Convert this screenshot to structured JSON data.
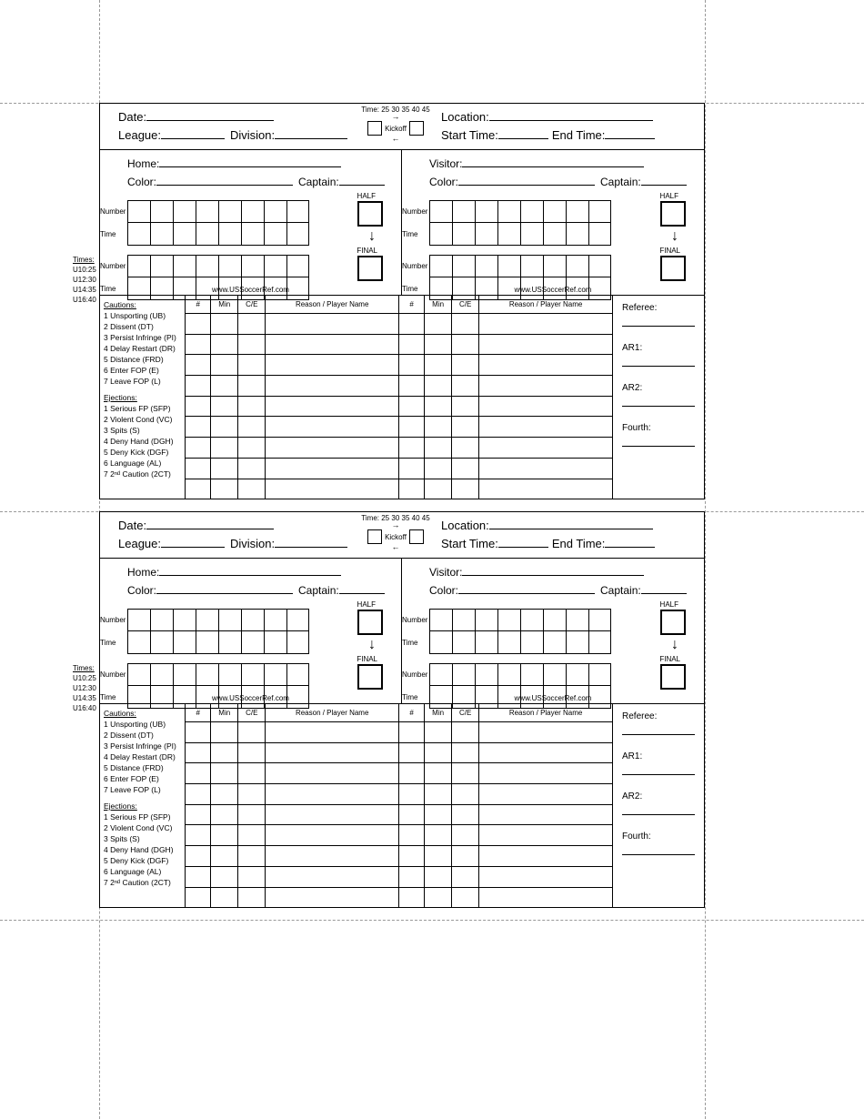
{
  "cuts": {
    "h": [
      113,
      562,
      1011
    ],
    "v": [
      109,
      775
    ]
  },
  "cards_top": [
    113,
    562
  ],
  "header": {
    "date": "Date:",
    "league": "League:",
    "division": "Division:",
    "location": "Location:",
    "start": "Start Time:",
    "end": "End Time:",
    "time_label": "Time:",
    "times": [
      "25",
      "30",
      "35",
      "40",
      "45"
    ],
    "kickoff": "Kickoff"
  },
  "team": {
    "home": "Home:",
    "visitor": "Visitor:",
    "color": "Color:",
    "captain": "Captain:",
    "number": "Number",
    "time": "Time",
    "half": "HALF",
    "final": "FINAL",
    "url": "www.USSoccerRef.com"
  },
  "times_legend": {
    "title": "Times:",
    "items": [
      "U10:25",
      "U12:30",
      "U14:35",
      "U16:40"
    ]
  },
  "card_cols": {
    "num": "#",
    "min": "Min",
    "ce": "C/E",
    "reason": "Reason / Player Name"
  },
  "legend": {
    "cautions_title": "Cautions:",
    "cautions": [
      "1 Unsporting (UB)",
      "2 Dissent (DT)",
      "3 Persist Infringe (PI)",
      "4 Delay Restart (DR)",
      "5 Distance (FRD)",
      "6 Enter FOP (E)",
      "7 Leave FOP (L)"
    ],
    "ejections_title": "Ejections:",
    "ejections": [
      "1 Serious FP (SFP)",
      "2 Violent Cond (VC)",
      "3 Spits (S)",
      "4 Deny Hand (DGH)",
      "5 Deny Kick (DGF)",
      "6 Language (AL)",
      "7 2ⁿᵈ Caution (2CT)"
    ]
  },
  "officials": {
    "referee": "Referee:",
    "ar1": "AR1:",
    "ar2": "AR2:",
    "fourth": "Fourth:"
  }
}
